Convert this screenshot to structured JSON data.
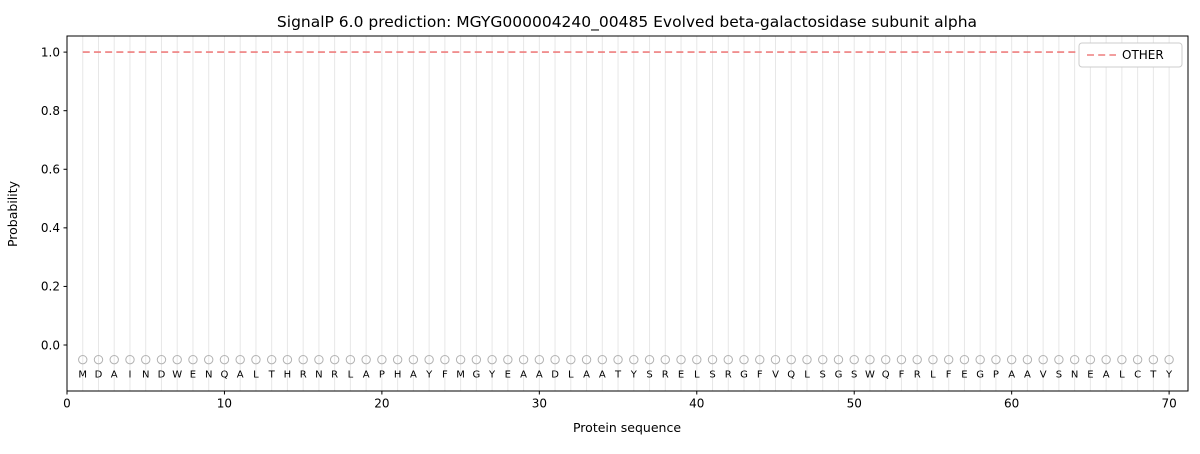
{
  "chart_data": {
    "type": "line",
    "title": "SignalP 6.0 prediction: MGYG000004240_00485 Evolved beta-galactosidase subunit alpha",
    "xlabel": "Protein sequence",
    "ylabel": "Probability",
    "xlim": [
      0,
      71.2
    ],
    "ylim": [
      -0.157,
      1.055
    ],
    "xticks": [
      0,
      10,
      20,
      30,
      40,
      50,
      60,
      70
    ],
    "yticks": [
      0.0,
      0.2,
      0.4,
      0.6,
      0.8,
      1.0
    ],
    "grid": "vertical gridline at each residue position, no horizontal gridlines",
    "legend": {
      "position": "upper right",
      "entries": [
        {
          "label": "OTHER",
          "color": "#ee7e7e",
          "dashed": true
        }
      ]
    },
    "sequence": "MDAINDWENQALTHRNRLAPHAYFMGYEAADLAATYSRELSRGFVQLSGSWQFRLFEGPAAVSNEALCTY",
    "residue_markers": {
      "shape": "open-circle",
      "y": -0.05
    },
    "series": [
      {
        "name": "OTHER",
        "color": "#ee7e7e",
        "dashed": true,
        "x_start": 1,
        "values": [
          1.0,
          1.0,
          1.0,
          1.0,
          1.0,
          1.0,
          1.0,
          1.0,
          1.0,
          1.0,
          1.0,
          1.0,
          1.0,
          1.0,
          1.0,
          1.0,
          1.0,
          1.0,
          1.0,
          1.0,
          1.0,
          1.0,
          1.0,
          1.0,
          1.0,
          1.0,
          1.0,
          1.0,
          1.0,
          1.0,
          1.0,
          1.0,
          1.0,
          1.0,
          1.0,
          1.0,
          1.0,
          1.0,
          1.0,
          1.0,
          1.0,
          1.0,
          1.0,
          1.0,
          1.0,
          1.0,
          1.0,
          1.0,
          1.0,
          1.0,
          1.0,
          1.0,
          1.0,
          1.0,
          1.0,
          1.0,
          1.0,
          1.0,
          1.0,
          1.0,
          1.0,
          1.0,
          1.0,
          1.0,
          1.0,
          1.0,
          1.0,
          1.0,
          1.0,
          1.0
        ]
      }
    ],
    "colors": {
      "line_red": "#ee7e7e",
      "grid": "#e7e7e7",
      "marker": "#b3b3b3",
      "letters": "#2b2b2b",
      "spine": "#000000",
      "legend_border": "#cccccc",
      "background": "#ffffff"
    }
  }
}
